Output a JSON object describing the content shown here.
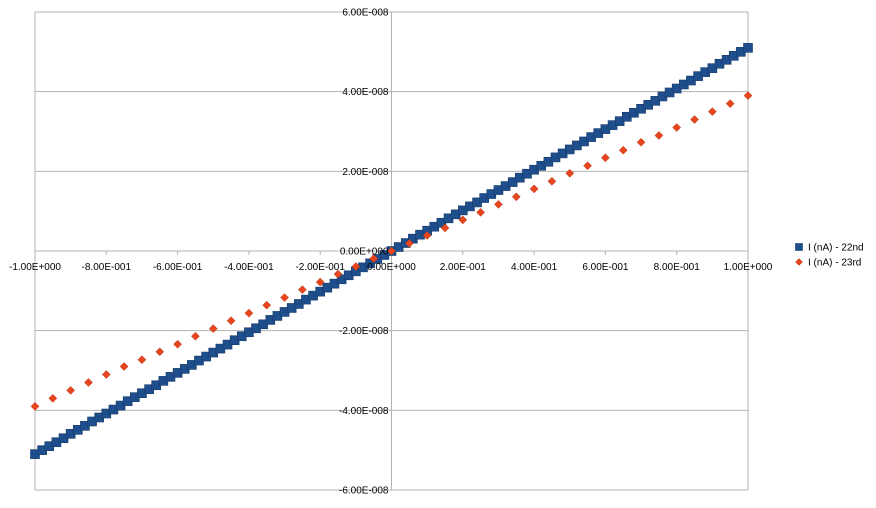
{
  "chart_data": {
    "type": "scatter",
    "title": "",
    "xlabel": "",
    "ylabel": "",
    "xlim": [
      -1.0,
      1.0
    ],
    "ylim": [
      -6e-08,
      6e-08
    ],
    "grid": "horizontal",
    "legend_position": "right",
    "x_ticks": [
      -1.0,
      -0.8,
      -0.6,
      -0.4,
      -0.2,
      0.0,
      0.2,
      0.4,
      0.6,
      0.8,
      1.0
    ],
    "x_tick_labels": [
      "-1.00E+000",
      "-8.00E-001",
      "-6.00E-001",
      "-4.00E-001",
      "-2.00E-001",
      "0.00E+000",
      "2.00E-001",
      "4.00E-001",
      "6.00E-001",
      "8.00E-001",
      "1.00E+000"
    ],
    "y_ticks": [
      -6e-08,
      -4e-08,
      -2e-08,
      0,
      2e-08,
      4e-08,
      6e-08
    ],
    "y_tick_labels": [
      "-6.00E-008",
      "-4.00E-008",
      "-2.00E-008",
      "0.00E+000",
      "2.00E-008",
      "4.00E-008",
      "6.00E-008"
    ],
    "series": [
      {
        "name": "I (nA) - 22nd",
        "color": "#1f4e8c",
        "marker": "square",
        "x": [
          -1.0,
          -0.98,
          -0.96,
          -0.94,
          -0.92,
          -0.9,
          -0.88,
          -0.86,
          -0.84,
          -0.82,
          -0.8,
          -0.78,
          -0.76,
          -0.74,
          -0.72,
          -0.7,
          -0.68,
          -0.66,
          -0.64,
          -0.62,
          -0.6,
          -0.58,
          -0.56,
          -0.54,
          -0.52,
          -0.5,
          -0.48,
          -0.46,
          -0.44,
          -0.42,
          -0.4,
          -0.38,
          -0.36,
          -0.34,
          -0.32,
          -0.3,
          -0.28,
          -0.26,
          -0.24,
          -0.22,
          -0.2,
          -0.18,
          -0.16,
          -0.14,
          -0.12,
          -0.1,
          -0.08,
          -0.06,
          -0.04,
          -0.02,
          0.0,
          0.02,
          0.04,
          0.06,
          0.08,
          0.1,
          0.12,
          0.14,
          0.16,
          0.18,
          0.2,
          0.22,
          0.24,
          0.26,
          0.28,
          0.3,
          0.32,
          0.34,
          0.36,
          0.38,
          0.4,
          0.42,
          0.44,
          0.46,
          0.48,
          0.5,
          0.52,
          0.54,
          0.56,
          0.58,
          0.6,
          0.62,
          0.64,
          0.66,
          0.68,
          0.7,
          0.72,
          0.74,
          0.76,
          0.78,
          0.8,
          0.82,
          0.84,
          0.86,
          0.88,
          0.9,
          0.92,
          0.94,
          0.96,
          0.98,
          1.0
        ],
        "y": [
          -5.1e-08,
          -5e-08,
          -4.9e-08,
          -4.8e-08,
          -4.7e-08,
          -4.59e-08,
          -4.49e-08,
          -4.39e-08,
          -4.28e-08,
          -4.18e-08,
          -4.08e-08,
          -3.98e-08,
          -3.88e-08,
          -3.77e-08,
          -3.67e-08,
          -3.57e-08,
          -3.47e-08,
          -3.37e-08,
          -3.26e-08,
          -3.16e-08,
          -3.06e-08,
          -2.96e-08,
          -2.86e-08,
          -2.75e-08,
          -2.65e-08,
          -2.55e-08,
          -2.45e-08,
          -2.35e-08,
          -2.24e-08,
          -2.14e-08,
          -2.04e-08,
          -1.94e-08,
          -1.84e-08,
          -1.73e-08,
          -1.63e-08,
          -1.53e-08,
          -1.43e-08,
          -1.33e-08,
          -1.22e-08,
          -1.12e-08,
          -1.02e-08,
          -9.2e-09,
          -8.2e-09,
          -7.1e-09,
          -6.1e-09,
          -5.1e-09,
          -4.1e-09,
          -3.1e-09,
          -2e-09,
          -1e-09,
          0.0,
          1e-09,
          2e-09,
          3.1e-09,
          4.1e-09,
          5.1e-09,
          6.1e-09,
          7.1e-09,
          8.2e-09,
          9.2e-09,
          1.02e-08,
          1.12e-08,
          1.22e-08,
          1.33e-08,
          1.43e-08,
          1.53e-08,
          1.63e-08,
          1.73e-08,
          1.84e-08,
          1.94e-08,
          2.04e-08,
          2.14e-08,
          2.24e-08,
          2.35e-08,
          2.45e-08,
          2.55e-08,
          2.65e-08,
          2.75e-08,
          2.86e-08,
          2.96e-08,
          3.06e-08,
          3.16e-08,
          3.26e-08,
          3.37e-08,
          3.47e-08,
          3.57e-08,
          3.67e-08,
          3.77e-08,
          3.88e-08,
          3.98e-08,
          4.08e-08,
          4.18e-08,
          4.28e-08,
          4.39e-08,
          4.49e-08,
          4.59e-08,
          4.7e-08,
          4.8e-08,
          4.9e-08,
          5e-08,
          5.1e-08
        ]
      },
      {
        "name": "I (nA) - 23rd",
        "color": "#e8461e",
        "marker": "diamond",
        "x": [
          -1.0,
          -0.95,
          -0.9,
          -0.85,
          -0.8,
          -0.75,
          -0.7,
          -0.65,
          -0.6,
          -0.55,
          -0.5,
          -0.45,
          -0.4,
          -0.35,
          -0.3,
          -0.25,
          -0.2,
          -0.15,
          -0.1,
          -0.05,
          0.0,
          0.05,
          0.1,
          0.15,
          0.2,
          0.25,
          0.3,
          0.35,
          0.4,
          0.45,
          0.5,
          0.55,
          0.6,
          0.65,
          0.7,
          0.75,
          0.8,
          0.85,
          0.9,
          0.95,
          1.0
        ],
        "y": [
          -3.9e-08,
          -3.7e-08,
          -3.5e-08,
          -3.3e-08,
          -3.1e-08,
          -2.9e-08,
          -2.73e-08,
          -2.53e-08,
          -2.34e-08,
          -2.14e-08,
          -1.95e-08,
          -1.75e-08,
          -1.56e-08,
          -1.36e-08,
          -1.17e-08,
          -9.7e-09,
          -7.8e-09,
          -5.8e-09,
          -3.9e-09,
          -1.9e-09,
          0.0,
          1.9e-09,
          3.9e-09,
          5.8e-09,
          7.8e-09,
          9.7e-09,
          1.17e-08,
          1.36e-08,
          1.56e-08,
          1.75e-08,
          1.95e-08,
          2.14e-08,
          2.34e-08,
          2.53e-08,
          2.73e-08,
          2.9e-08,
          3.1e-08,
          3.3e-08,
          3.5e-08,
          3.7e-08,
          3.9e-08
        ]
      }
    ]
  }
}
